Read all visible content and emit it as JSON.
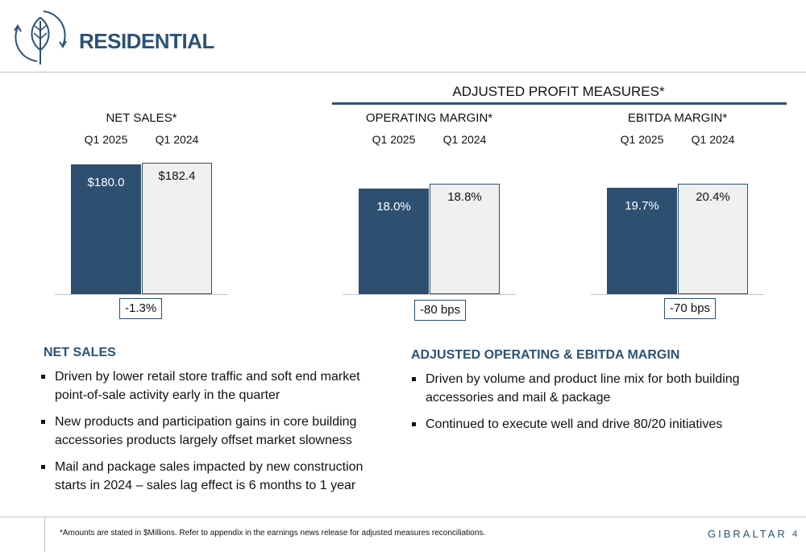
{
  "header": {
    "title": "RESIDENTIAL"
  },
  "adjusted_header": "ADJUSTED PROFIT MEASURES*",
  "colors": {
    "brand": "#2c5275",
    "current_bar": "#2d4f70",
    "prior_bar": "#f0f0f0"
  },
  "chart_data": [
    {
      "type": "bar",
      "title": "NET SALES*",
      "categories": [
        "Q1 2025",
        "Q1 2024"
      ],
      "values": [
        180.0,
        182.4
      ],
      "labels": [
        "$180.0",
        "$182.4"
      ],
      "change": "-1.3%"
    },
    {
      "type": "bar",
      "title": "OPERATING MARGIN*",
      "categories": [
        "Q1 2025",
        "Q1 2024"
      ],
      "values": [
        18.0,
        18.8
      ],
      "labels": [
        "18.0%",
        "18.8%"
      ],
      "change": "-80 bps"
    },
    {
      "type": "bar",
      "title": "EBITDA MARGIN*",
      "categories": [
        "Q1 2025",
        "Q1 2024"
      ],
      "values": [
        19.7,
        20.4
      ],
      "labels": [
        "19.7%",
        "20.4%"
      ],
      "change": "-70 bps"
    }
  ],
  "net_sales_section": {
    "heading": "NET SALES",
    "bullets": [
      "Driven by lower retail store traffic and soft end market point-of-sale activity early in the quarter",
      "New products and participation gains in core building accessories products largely offset market slowness",
      "Mail and package sales impacted by new construction starts in 2024 – sales lag effect is 6 months to 1 year"
    ]
  },
  "margin_section": {
    "heading": "ADJUSTED OPERATING & EBITDA MARGIN",
    "bullets": [
      "Driven by volume and product line mix for both building accessories and mail & package",
      "Continued to execute well and drive 80/20 initiatives"
    ]
  },
  "footer": {
    "note": "*Amounts are stated in $Millions.  Refer to appendix in the earnings news release for adjusted measures reconciliations.",
    "brand": "GIBRALTAR",
    "page": "4"
  }
}
